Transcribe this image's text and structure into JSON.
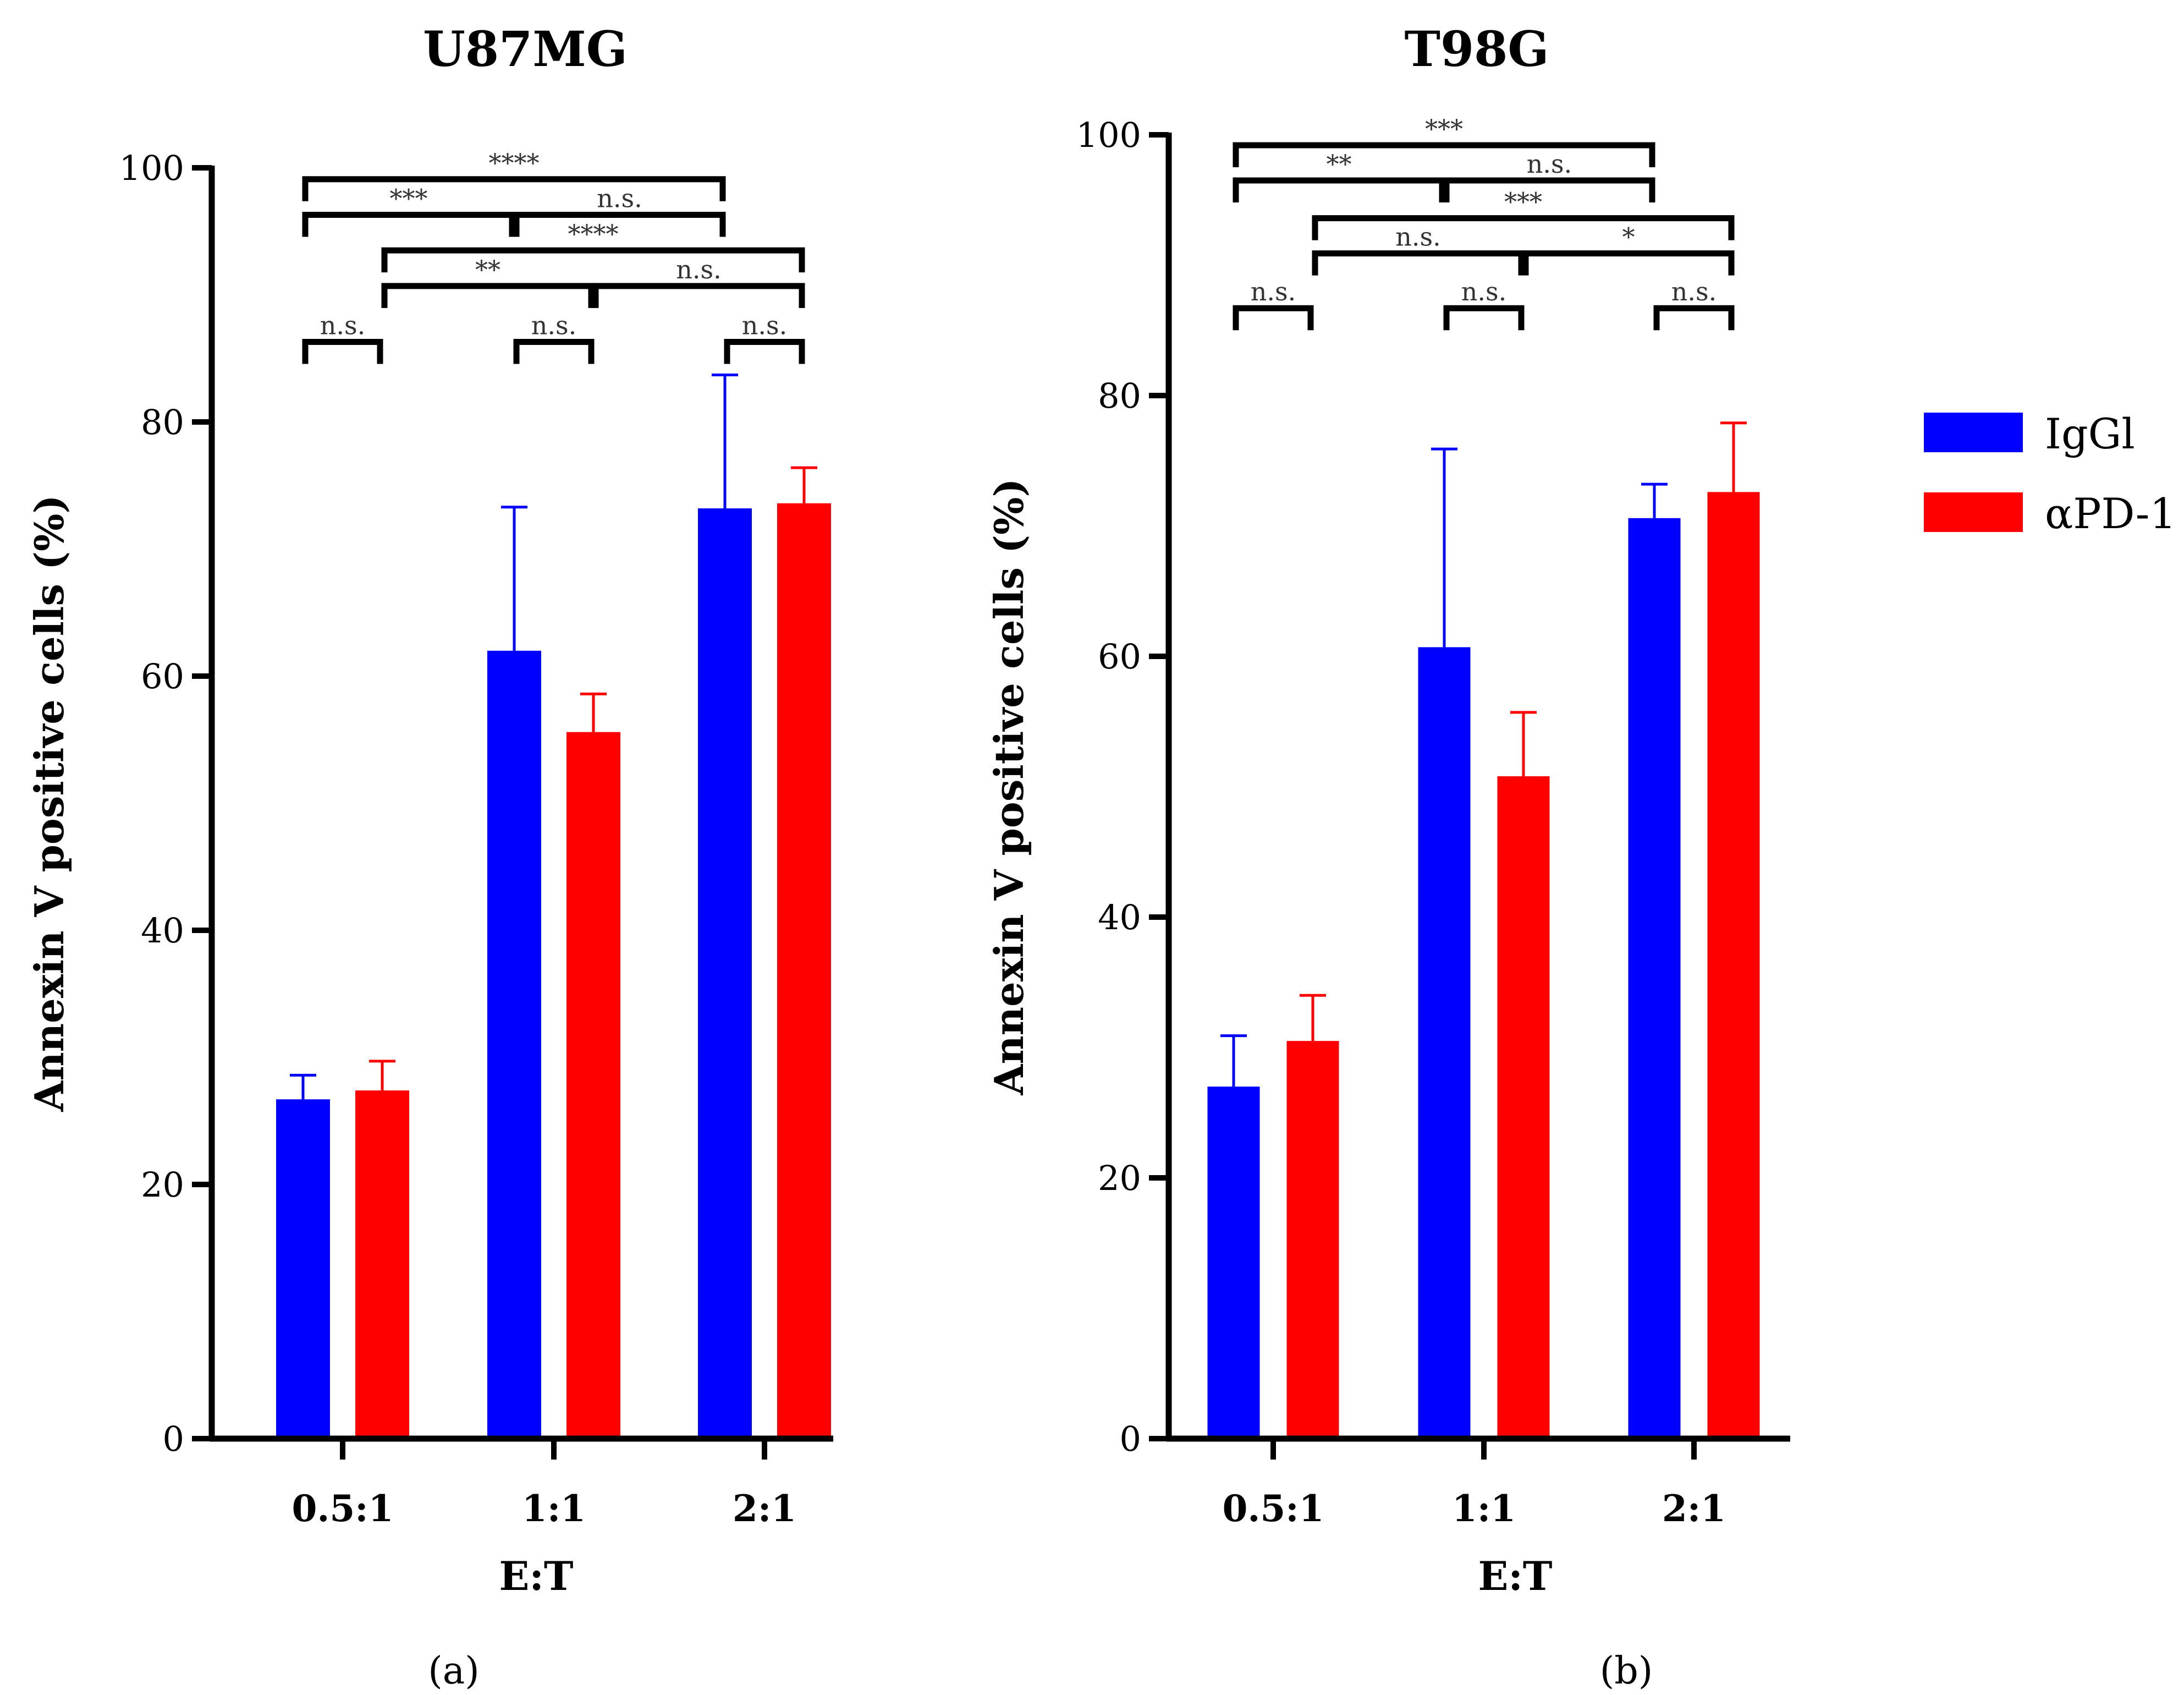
{
  "legend": {
    "entries": [
      {
        "label": "IgGl",
        "color": "#0000ff"
      },
      {
        "label": "αPD-1",
        "color": "#ff0000"
      }
    ]
  },
  "chart_data": [
    {
      "type": "bar",
      "panel_label": "(a)",
      "title": "U87MG",
      "xlabel": "E:T",
      "ylabel": "Annexin V positive cells (%)",
      "ylim": [
        0,
        100
      ],
      "yticks": [
        0,
        20,
        40,
        60,
        80,
        100
      ],
      "categories": [
        "0.5:1",
        "1:1",
        "2:1"
      ],
      "series": [
        {
          "name": "IgGl",
          "color": "#0000ff",
          "values": [
            26.7,
            62.0,
            73.2
          ],
          "error": [
            1.9,
            11.3,
            10.5
          ]
        },
        {
          "name": "αPD-1",
          "color": "#ff0000",
          "values": [
            27.4,
            55.6,
            73.6
          ],
          "error": [
            2.3,
            3.0,
            2.8
          ]
        }
      ],
      "comparisons": [
        {
          "from": [
            0,
            0
          ],
          "to": [
            0,
            1
          ],
          "label": "n.s.",
          "y": 86.3
        },
        {
          "from": [
            1,
            0
          ],
          "to": [
            1,
            1
          ],
          "label": "n.s.",
          "y": 86.3
        },
        {
          "from": [
            2,
            0
          ],
          "to": [
            2,
            1
          ],
          "label": "n.s.",
          "y": 86.3
        },
        {
          "from": [
            0,
            1
          ],
          "to": [
            1,
            1
          ],
          "label": "**",
          "y": 90.7
        },
        {
          "from": [
            1,
            1
          ],
          "to": [
            2,
            1
          ],
          "label": "n.s.",
          "y": 90.7
        },
        {
          "from": [
            0,
            1
          ],
          "to": [
            2,
            1
          ],
          "label": "****",
          "y": 93.5
        },
        {
          "from": [
            0,
            0
          ],
          "to": [
            1,
            0
          ],
          "label": "***",
          "y": 96.3
        },
        {
          "from": [
            1,
            0
          ],
          "to": [
            2,
            0
          ],
          "label": "n.s.",
          "y": 96.3
        },
        {
          "from": [
            0,
            0
          ],
          "to": [
            2,
            0
          ],
          "label": "****",
          "y": 99.1
        }
      ]
    },
    {
      "type": "bar",
      "panel_label": "(b)",
      "title": "T98G",
      "xlabel": "E:T",
      "ylabel": "Annexin V positive cells (%)",
      "ylim": [
        0,
        100
      ],
      "yticks": [
        0,
        20,
        40,
        60,
        80,
        100
      ],
      "categories": [
        "0.5:1",
        "1:1",
        "2:1"
      ],
      "series": [
        {
          "name": "IgGl",
          "color": "#0000ff",
          "values": [
            27.0,
            60.7,
            70.6
          ],
          "error": [
            3.9,
            15.2,
            2.6
          ]
        },
        {
          "name": "αPD-1",
          "color": "#ff0000",
          "values": [
            30.5,
            50.8,
            72.6
          ],
          "error": [
            3.5,
            4.9,
            5.3
          ]
        }
      ],
      "comparisons": [
        {
          "from": [
            0,
            0
          ],
          "to": [
            0,
            1
          ],
          "label": "n.s.",
          "y": 86.7
        },
        {
          "from": [
            1,
            0
          ],
          "to": [
            1,
            1
          ],
          "label": "n.s.",
          "y": 86.7
        },
        {
          "from": [
            2,
            0
          ],
          "to": [
            2,
            1
          ],
          "label": "n.s.",
          "y": 86.7
        },
        {
          "from": [
            0,
            1
          ],
          "to": [
            1,
            1
          ],
          "label": "n.s.",
          "y": 90.9
        },
        {
          "from": [
            1,
            1
          ],
          "to": [
            2,
            1
          ],
          "label": "*",
          "y": 90.9
        },
        {
          "from": [
            0,
            1
          ],
          "to": [
            2,
            1
          ],
          "label": "***",
          "y": 93.6
        },
        {
          "from": [
            0,
            0
          ],
          "to": [
            1,
            0
          ],
          "label": "**",
          "y": 96.5
        },
        {
          "from": [
            1,
            0
          ],
          "to": [
            2,
            0
          ],
          "label": "n.s.",
          "y": 96.5
        },
        {
          "from": [
            0,
            0
          ],
          "to": [
            2,
            0
          ],
          "label": "***",
          "y": 99.2
        }
      ]
    }
  ]
}
